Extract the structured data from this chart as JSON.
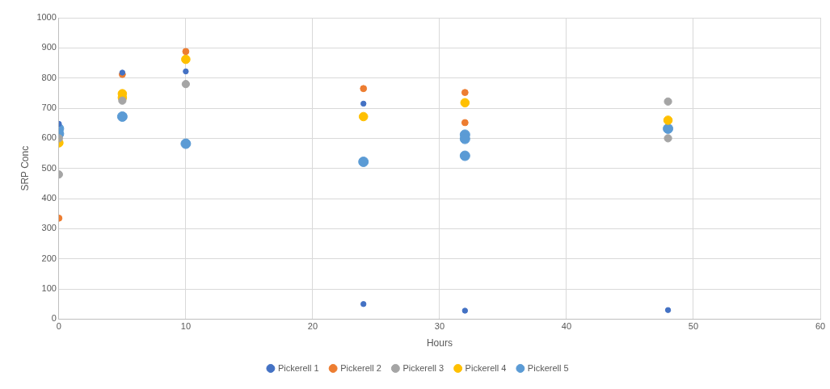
{
  "chart_data": {
    "type": "scatter",
    "xlabel": "Hours",
    "ylabel": "SRP Conc",
    "xlim": [
      0,
      60
    ],
    "xticks": [
      0,
      10,
      20,
      30,
      40,
      50,
      60
    ],
    "ylim": [
      0,
      1000
    ],
    "yticks": [
      0,
      100,
      200,
      300,
      400,
      500,
      600,
      700,
      800,
      900,
      1000
    ],
    "grid": true,
    "legend": "bottom",
    "marker": "circle",
    "series": [
      {
        "name": "Pickerell 1",
        "color": "#4472c4",
        "x": [
          0,
          5,
          10,
          24,
          24,
          32,
          48
        ],
        "values": [
          648,
          818,
          822,
          715,
          50,
          28,
          30
        ]
      },
      {
        "name": "Pickerell 2",
        "color": "#ed7d31",
        "x": [
          0,
          5,
          10,
          24,
          32,
          32
        ],
        "values": [
          335,
          812,
          888,
          765,
          752,
          652
        ]
      },
      {
        "name": "Pickerell 3",
        "color": "#a5a5a5",
        "x": [
          0,
          0,
          5,
          10,
          48,
          48
        ],
        "values": [
          480,
          600,
          725,
          780,
          722,
          600
        ]
      },
      {
        "name": "Pickerell 4",
        "color": "#ffc000",
        "x": [
          0,
          5,
          5,
          10,
          24,
          32,
          48
        ],
        "values": [
          585,
          748,
          735,
          862,
          672,
          718,
          660
        ]
      },
      {
        "name": "Pickerell 5",
        "color": "#5b9bd5",
        "x": [
          0,
          0,
          5,
          10,
          24,
          32,
          32,
          32,
          48
        ],
        "values": [
          632,
          615,
          672,
          582,
          522,
          612,
          598,
          542,
          632
        ]
      }
    ]
  }
}
